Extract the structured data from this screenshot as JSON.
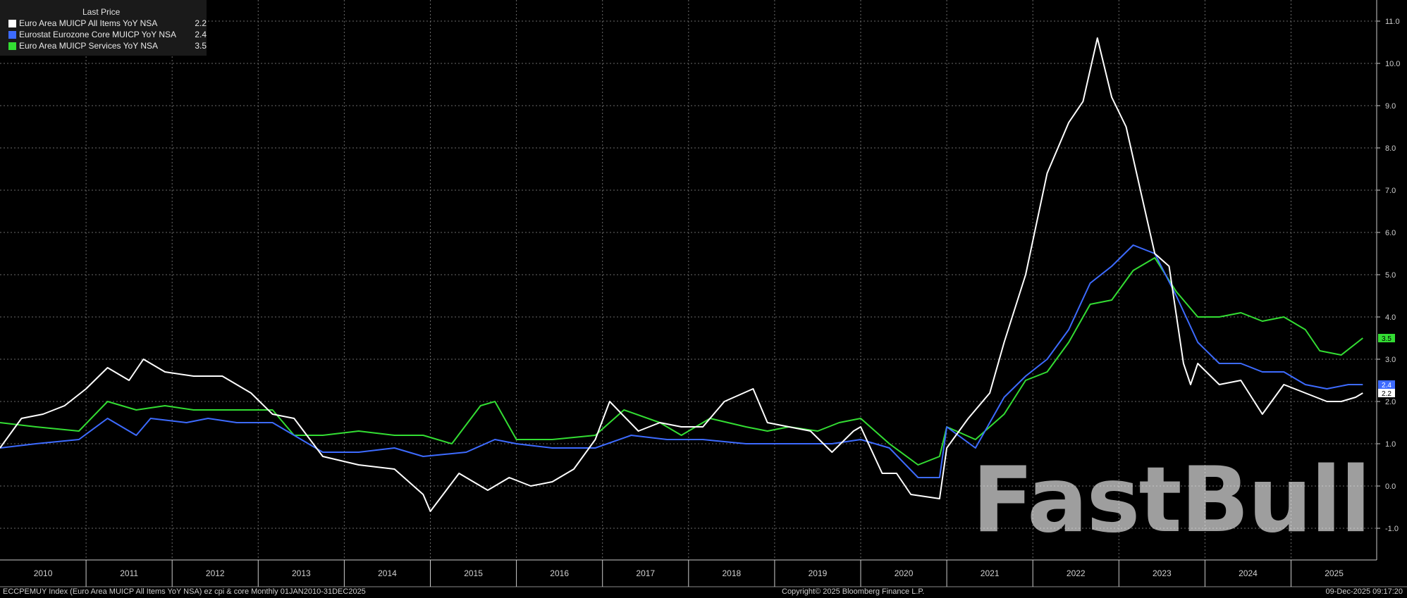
{
  "legend": {
    "title": "Last Price",
    "items": [
      {
        "name": "Euro Area MUICP All Items YoY NSA",
        "value": "2.2",
        "color": "#ffffff"
      },
      {
        "name": "Eurostat Eurozone Core MUICP YoY NSA",
        "value": "2.4",
        "color": "#3d6bff"
      },
      {
        "name": "Euro Area MUICP Services YoY NSA",
        "value": "3.5",
        "color": "#33dd33"
      }
    ]
  },
  "footer": {
    "left": "ECCPEMUY Index (Euro Area MUICP All Items YoY NSA) ez cpi & core Monthly 01JAN2010-31DEC2025",
    "center": "Copyright© 2025 Bloomberg Finance L.P.",
    "right": "09-Dec-2025 09:17:20"
  },
  "watermark": "FastBull",
  "chart_data": {
    "type": "line",
    "title": "",
    "xlabel": "",
    "ylabel": "",
    "x_start": "2010-01",
    "x_end": "2025-12",
    "xlim": [
      "2010-01",
      "2025-12"
    ],
    "ylim": [
      -1.75,
      11.5
    ],
    "y_ticks": [
      "11.0",
      "10.0",
      "9.0",
      "8.0",
      "7.0",
      "6.0",
      "5.0",
      "4.0",
      "3.0",
      "2.0",
      "1.0",
      "0.0",
      "-1.0"
    ],
    "x_tick_labels": [
      "2010",
      "2011",
      "2012",
      "2013",
      "2014",
      "2015",
      "2016",
      "2017",
      "2018",
      "2019",
      "2020",
      "2021",
      "2022",
      "2023",
      "2024",
      "2025"
    ],
    "grid": true,
    "legend_position": "top-left",
    "last_value_labels": [
      "3.5",
      "2.4",
      "2.2"
    ],
    "series": [
      {
        "name": "Euro Area MUICP All Items YoY NSA",
        "color": "#ffffff",
        "values": [
          {
            "x": "2010-01",
            "y": 0.9
          },
          {
            "x": "2010-04",
            "y": 1.6
          },
          {
            "x": "2010-07",
            "y": 1.7
          },
          {
            "x": "2010-10",
            "y": 1.9
          },
          {
            "x": "2011-01",
            "y": 2.3
          },
          {
            "x": "2011-04",
            "y": 2.8
          },
          {
            "x": "2011-07",
            "y": 2.5
          },
          {
            "x": "2011-09",
            "y": 3.0
          },
          {
            "x": "2011-12",
            "y": 2.7
          },
          {
            "x": "2012-04",
            "y": 2.6
          },
          {
            "x": "2012-08",
            "y": 2.6
          },
          {
            "x": "2012-12",
            "y": 2.2
          },
          {
            "x": "2013-03",
            "y": 1.7
          },
          {
            "x": "2013-06",
            "y": 1.6
          },
          {
            "x": "2013-10",
            "y": 0.7
          },
          {
            "x": "2014-03",
            "y": 0.5
          },
          {
            "x": "2014-08",
            "y": 0.4
          },
          {
            "x": "2014-12",
            "y": -0.2
          },
          {
            "x": "2015-01",
            "y": -0.6
          },
          {
            "x": "2015-05",
            "y": 0.3
          },
          {
            "x": "2015-09",
            "y": -0.1
          },
          {
            "x": "2015-12",
            "y": 0.2
          },
          {
            "x": "2016-03",
            "y": 0.0
          },
          {
            "x": "2016-06",
            "y": 0.1
          },
          {
            "x": "2016-09",
            "y": 0.4
          },
          {
            "x": "2016-12",
            "y": 1.1
          },
          {
            "x": "2017-02",
            "y": 2.0
          },
          {
            "x": "2017-06",
            "y": 1.3
          },
          {
            "x": "2017-09",
            "y": 1.5
          },
          {
            "x": "2017-12",
            "y": 1.4
          },
          {
            "x": "2018-03",
            "y": 1.4
          },
          {
            "x": "2018-06",
            "y": 2.0
          },
          {
            "x": "2018-10",
            "y": 2.3
          },
          {
            "x": "2018-12",
            "y": 1.5
          },
          {
            "x": "2019-03",
            "y": 1.4
          },
          {
            "x": "2019-06",
            "y": 1.3
          },
          {
            "x": "2019-09",
            "y": 0.8
          },
          {
            "x": "2019-12",
            "y": 1.3
          },
          {
            "x": "2020-01",
            "y": 1.4
          },
          {
            "x": "2020-04",
            "y": 0.3
          },
          {
            "x": "2020-06",
            "y": 0.3
          },
          {
            "x": "2020-08",
            "y": -0.2
          },
          {
            "x": "2020-12",
            "y": -0.3
          },
          {
            "x": "2021-01",
            "y": 0.9
          },
          {
            "x": "2021-04",
            "y": 1.6
          },
          {
            "x": "2021-07",
            "y": 2.2
          },
          {
            "x": "2021-09",
            "y": 3.4
          },
          {
            "x": "2021-12",
            "y": 5.0
          },
          {
            "x": "2022-03",
            "y": 7.4
          },
          {
            "x": "2022-06",
            "y": 8.6
          },
          {
            "x": "2022-08",
            "y": 9.1
          },
          {
            "x": "2022-10",
            "y": 10.6
          },
          {
            "x": "2022-12",
            "y": 9.2
          },
          {
            "x": "2023-02",
            "y": 8.5
          },
          {
            "x": "2023-04",
            "y": 7.0
          },
          {
            "x": "2023-06",
            "y": 5.5
          },
          {
            "x": "2023-08",
            "y": 5.2
          },
          {
            "x": "2023-10",
            "y": 2.9
          },
          {
            "x": "2023-11",
            "y": 2.4
          },
          {
            "x": "2023-12",
            "y": 2.9
          },
          {
            "x": "2024-03",
            "y": 2.4
          },
          {
            "x": "2024-06",
            "y": 2.5
          },
          {
            "x": "2024-09",
            "y": 1.7
          },
          {
            "x": "2024-12",
            "y": 2.4
          },
          {
            "x": "2025-03",
            "y": 2.2
          },
          {
            "x": "2025-06",
            "y": 2.0
          },
          {
            "x": "2025-08",
            "y": 2.0
          },
          {
            "x": "2025-10",
            "y": 2.1
          },
          {
            "x": "2025-11",
            "y": 2.2
          }
        ]
      },
      {
        "name": "Eurostat Eurozone Core MUICP YoY NSA",
        "color": "#3d6bff",
        "values": [
          {
            "x": "2010-01",
            "y": 0.9
          },
          {
            "x": "2010-06",
            "y": 1.0
          },
          {
            "x": "2010-12",
            "y": 1.1
          },
          {
            "x": "2011-04",
            "y": 1.6
          },
          {
            "x": "2011-08",
            "y": 1.2
          },
          {
            "x": "2011-10",
            "y": 1.6
          },
          {
            "x": "2012-03",
            "y": 1.5
          },
          {
            "x": "2012-06",
            "y": 1.6
          },
          {
            "x": "2012-10",
            "y": 1.5
          },
          {
            "x": "2013-03",
            "y": 1.5
          },
          {
            "x": "2013-06",
            "y": 1.2
          },
          {
            "x": "2013-10",
            "y": 0.8
          },
          {
            "x": "2014-03",
            "y": 0.8
          },
          {
            "x": "2014-08",
            "y": 0.9
          },
          {
            "x": "2014-12",
            "y": 0.7
          },
          {
            "x": "2015-06",
            "y": 0.8
          },
          {
            "x": "2015-10",
            "y": 1.1
          },
          {
            "x": "2016-01",
            "y": 1.0
          },
          {
            "x": "2016-06",
            "y": 0.9
          },
          {
            "x": "2016-12",
            "y": 0.9
          },
          {
            "x": "2017-05",
            "y": 1.2
          },
          {
            "x": "2017-10",
            "y": 1.1
          },
          {
            "x": "2018-03",
            "y": 1.1
          },
          {
            "x": "2018-09",
            "y": 1.0
          },
          {
            "x": "2019-03",
            "y": 1.0
          },
          {
            "x": "2019-09",
            "y": 1.0
          },
          {
            "x": "2020-01",
            "y": 1.1
          },
          {
            "x": "2020-05",
            "y": 0.9
          },
          {
            "x": "2020-09",
            "y": 0.2
          },
          {
            "x": "2020-12",
            "y": 0.2
          },
          {
            "x": "2021-01",
            "y": 1.4
          },
          {
            "x": "2021-05",
            "y": 0.9
          },
          {
            "x": "2021-09",
            "y": 2.1
          },
          {
            "x": "2021-12",
            "y": 2.6
          },
          {
            "x": "2022-03",
            "y": 3.0
          },
          {
            "x": "2022-06",
            "y": 3.7
          },
          {
            "x": "2022-09",
            "y": 4.8
          },
          {
            "x": "2022-12",
            "y": 5.2
          },
          {
            "x": "2023-03",
            "y": 5.7
          },
          {
            "x": "2023-06",
            "y": 5.5
          },
          {
            "x": "2023-09",
            "y": 4.5
          },
          {
            "x": "2023-12",
            "y": 3.4
          },
          {
            "x": "2024-03",
            "y": 2.9
          },
          {
            "x": "2024-06",
            "y": 2.9
          },
          {
            "x": "2024-09",
            "y": 2.7
          },
          {
            "x": "2024-12",
            "y": 2.7
          },
          {
            "x": "2025-03",
            "y": 2.4
          },
          {
            "x": "2025-06",
            "y": 2.3
          },
          {
            "x": "2025-09",
            "y": 2.4
          },
          {
            "x": "2025-11",
            "y": 2.4
          }
        ]
      },
      {
        "name": "Euro Area MUICP Services YoY NSA",
        "color": "#33dd33",
        "values": [
          {
            "x": "2010-01",
            "y": 1.5
          },
          {
            "x": "2010-06",
            "y": 1.4
          },
          {
            "x": "2010-12",
            "y": 1.3
          },
          {
            "x": "2011-04",
            "y": 2.0
          },
          {
            "x": "2011-08",
            "y": 1.8
          },
          {
            "x": "2011-12",
            "y": 1.9
          },
          {
            "x": "2012-04",
            "y": 1.8
          },
          {
            "x": "2012-08",
            "y": 1.8
          },
          {
            "x": "2012-12",
            "y": 1.8
          },
          {
            "x": "2013-03",
            "y": 1.8
          },
          {
            "x": "2013-06",
            "y": 1.2
          },
          {
            "x": "2013-10",
            "y": 1.2
          },
          {
            "x": "2014-03",
            "y": 1.3
          },
          {
            "x": "2014-08",
            "y": 1.2
          },
          {
            "x": "2014-12",
            "y": 1.2
          },
          {
            "x": "2015-04",
            "y": 1.0
          },
          {
            "x": "2015-08",
            "y": 1.9
          },
          {
            "x": "2015-10",
            "y": 2.0
          },
          {
            "x": "2016-01",
            "y": 1.1
          },
          {
            "x": "2016-06",
            "y": 1.1
          },
          {
            "x": "2016-12",
            "y": 1.2
          },
          {
            "x": "2017-04",
            "y": 1.8
          },
          {
            "x": "2017-09",
            "y": 1.5
          },
          {
            "x": "2017-12",
            "y": 1.2
          },
          {
            "x": "2018-04",
            "y": 1.6
          },
          {
            "x": "2018-09",
            "y": 1.4
          },
          {
            "x": "2018-12",
            "y": 1.3
          },
          {
            "x": "2019-03",
            "y": 1.4
          },
          {
            "x": "2019-07",
            "y": 1.3
          },
          {
            "x": "2019-10",
            "y": 1.5
          },
          {
            "x": "2020-01",
            "y": 1.6
          },
          {
            "x": "2020-05",
            "y": 1.0
          },
          {
            "x": "2020-09",
            "y": 0.5
          },
          {
            "x": "2020-12",
            "y": 0.7
          },
          {
            "x": "2021-01",
            "y": 1.4
          },
          {
            "x": "2021-05",
            "y": 1.1
          },
          {
            "x": "2021-09",
            "y": 1.7
          },
          {
            "x": "2021-12",
            "y": 2.5
          },
          {
            "x": "2022-03",
            "y": 2.7
          },
          {
            "x": "2022-06",
            "y": 3.4
          },
          {
            "x": "2022-09",
            "y": 4.3
          },
          {
            "x": "2022-12",
            "y": 4.4
          },
          {
            "x": "2023-03",
            "y": 5.1
          },
          {
            "x": "2023-06",
            "y": 5.4
          },
          {
            "x": "2023-09",
            "y": 4.6
          },
          {
            "x": "2023-12",
            "y": 4.0
          },
          {
            "x": "2024-03",
            "y": 4.0
          },
          {
            "x": "2024-06",
            "y": 4.1
          },
          {
            "x": "2024-09",
            "y": 3.9
          },
          {
            "x": "2024-12",
            "y": 4.0
          },
          {
            "x": "2025-03",
            "y": 3.7
          },
          {
            "x": "2025-05",
            "y": 3.2
          },
          {
            "x": "2025-08",
            "y": 3.1
          },
          {
            "x": "2025-11",
            "y": 3.5
          }
        ]
      }
    ]
  }
}
